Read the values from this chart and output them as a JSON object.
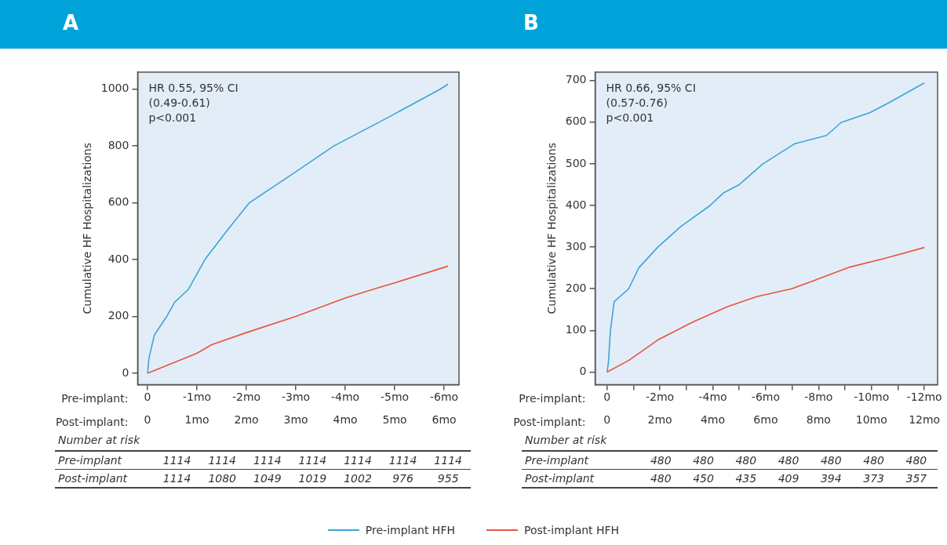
{
  "chart_data": [
    {
      "type": "line",
      "title": "A",
      "ylabel": "Cumulative HF Hospitalizations",
      "x2label": "Pre-implant:",
      "xlabel": "Post-implant:",
      "x2lim": [
        0.2,
        -6.3
      ],
      "ylim": [
        -40,
        1060
      ],
      "xlim": [
        -0.2,
        6.3
      ],
      "x2ticks": [
        0,
        {
          "value": -1,
          "label": "-1mo"
        },
        {
          "value": -2,
          "label": "-2mo"
        },
        {
          "value": -3,
          "label": "-3mo"
        },
        {
          "value": -4,
          "label": "-4mo"
        },
        {
          "value": -5,
          "label": "-5mo"
        },
        {
          "value": -6,
          "label": "-6mo"
        }
      ],
      "xticks": [
        0,
        {
          "value": 1,
          "label": "1mo"
        },
        {
          "value": 2,
          "label": "2mo"
        },
        {
          "value": 3,
          "label": "3mo"
        },
        {
          "value": 4,
          "label": "4mo"
        },
        {
          "value": 5,
          "label": "5mo"
        },
        {
          "value": 6,
          "label": "6mo"
        }
      ],
      "yticks": [
        0,
        200,
        400,
        600,
        800,
        1000
      ],
      "legend": "bottom",
      "series": [
        {
          "name": "Pre-implant HFH",
          "color": "#3aa6d8",
          "x": [
            0,
            0.03,
            0.14,
            0.39,
            0.55,
            0.83,
            1.16,
            1.6,
            2.06,
            2.92,
            3.77,
            4.87,
            5.92,
            6.08
          ],
          "values": [
            0,
            54,
            135,
            200,
            250,
            296,
            400,
            500,
            600,
            700,
            800,
            901,
            1000,
            1018
          ]
        },
        {
          "name": "Post-implant HFH",
          "color": "#e8553e",
          "x": [
            0,
            0.5,
            1,
            1.29,
            2,
            3,
            4,
            4.65,
            5,
            6.08
          ],
          "values": [
            0,
            35,
            70,
            100,
            143,
            200,
            265,
            300,
            318,
            377
          ]
        }
      ],
      "annotations": [
        "HR 0.55, 95% CI\n(0.49-0.61)\np<0.001",
        "Number at risk",
        "Pre-implant",
        "1114",
        "1114",
        "1114",
        "1114",
        "1114",
        "1114",
        "1114",
        "Post-implant",
        "1114",
        "1080",
        "1049",
        "1019",
        "1002",
        "976",
        "955"
      ]
    },
    {
      "type": "line",
      "title": "B",
      "ylabel": "Cumulative HF Hospitalizations",
      "x2label": "Pre-implant:",
      "xlabel": "Post-implant:",
      "x2lim": [
        0.45,
        -12.5
      ],
      "ylim": [
        -30,
        720
      ],
      "xlim": [
        -0.45,
        12.5
      ],
      "x2ticks": [
        0,
        {
          "value": -1,
          "label": null
        },
        {
          "value": -2,
          "label": "-2mo"
        },
        {
          "value": -3,
          "label": null
        },
        {
          "value": -4,
          "label": "-4mo"
        },
        {
          "value": -5,
          "label": null
        },
        {
          "value": -6,
          "label": "-6mo"
        },
        {
          "value": -7,
          "label": null
        },
        {
          "value": -8,
          "label": "-8mo"
        },
        {
          "value": -9,
          "label": null
        },
        {
          "value": -10,
          "label": "-10mo"
        },
        {
          "value": -11,
          "label": null
        },
        {
          "value": -12,
          "label": "-12mo"
        }
      ],
      "xticks": [
        0,
        {
          "value": 2,
          "label": "2mo"
        },
        {
          "value": 4,
          "label": "4mo"
        },
        {
          "value": 6,
          "label": "6mo"
        },
        {
          "value": 8,
          "label": "8mo"
        },
        {
          "value": 10,
          "label": "10mo"
        },
        {
          "value": 12,
          "label": "12mo"
        }
      ],
      "yticks": [
        0,
        100,
        200,
        300,
        400,
        500,
        600,
        700
      ],
      "series": [
        {
          "color": "#3aa6d8",
          "x": [
            0,
            0.05,
            0.13,
            0.27,
            0.82,
            1.2,
            1.92,
            2.8,
            3.9,
            4.4,
            5.0,
            5.88,
            7.09,
            8.3,
            8.85,
            9.95,
            10.7,
            12
          ],
          "values": [
            0,
            21,
            100,
            169,
            200,
            250,
            300,
            350,
            400,
            430,
            450,
            499,
            548,
            568,
            599,
            623,
            648,
            694
          ]
        },
        {
          "color": "#e8553e",
          "x": [
            0,
            0.82,
            1.92,
            3.24,
            4.56,
            5.66,
            6.98,
            7.75,
            9.18,
            10.5,
            12
          ],
          "values": [
            0,
            28,
            77,
            120,
            157,
            181,
            200,
            218,
            252,
            273,
            299
          ]
        }
      ],
      "annotations": [
        "HR 0.66, 95% CI\n(0.57-0.76)\np<0.001",
        "Number at risk",
        "Pre-implant",
        "480",
        "480",
        "480",
        "480",
        "480",
        "480",
        "480",
        "Post-implant",
        "480",
        "450",
        "435",
        "409",
        "394",
        "373",
        "357"
      ]
    }
  ]
}
